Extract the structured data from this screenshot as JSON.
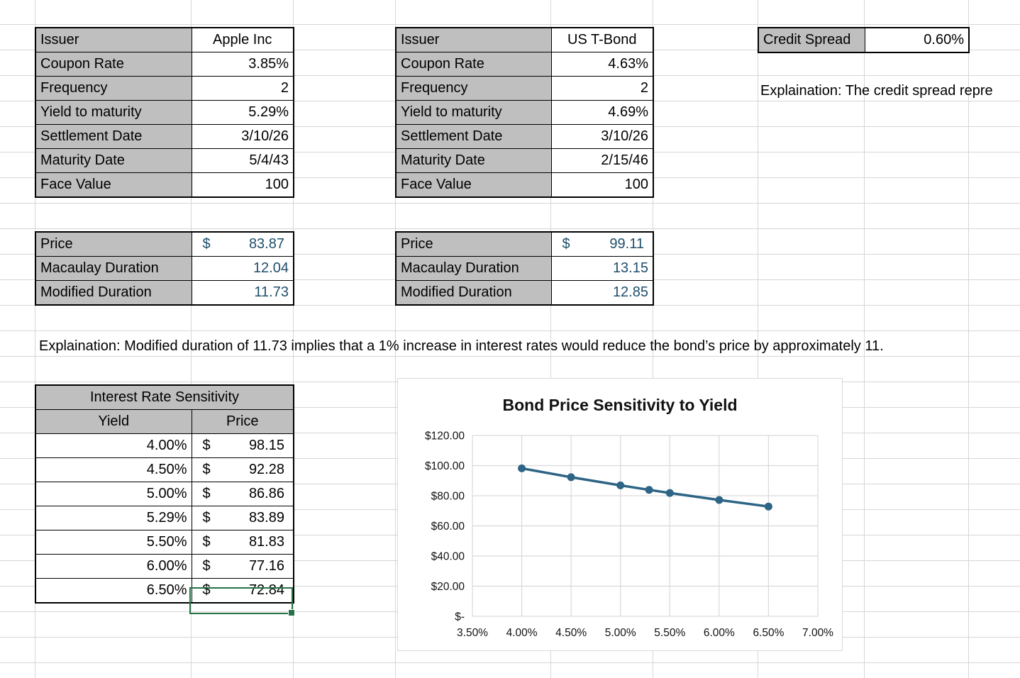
{
  "colors": {
    "value_blue": "#1F4E6B",
    "selection_green": "#287048",
    "header_gray": "#BFBFBF",
    "chart_line": "#2E6485",
    "gridline_gray": "#D6D6D6"
  },
  "tables": {
    "apple": {
      "rows": [
        {
          "label": "Issuer",
          "value": "Apple Inc"
        },
        {
          "label": "Coupon Rate",
          "value": "3.85%"
        },
        {
          "label": "Frequency",
          "value": "2"
        },
        {
          "label": "Yield to maturity",
          "value": "5.29%"
        },
        {
          "label": "Settlement Date",
          "value": "3/10/26"
        },
        {
          "label": "Maturity Date",
          "value": "5/4/43"
        },
        {
          "label": "Face Value",
          "value": "100"
        }
      ]
    },
    "tbond": {
      "rows": [
        {
          "label": "Issuer",
          "value": "US T-Bond"
        },
        {
          "label": "Coupon Rate",
          "value": "4.63%"
        },
        {
          "label": "Frequency",
          "value": "2"
        },
        {
          "label": "Yield to maturity",
          "value": "4.69%"
        },
        {
          "label": "Settlement Date",
          "value": "3/10/26"
        },
        {
          "label": "Maturity Date",
          "value": "2/15/46"
        },
        {
          "label": "Face Value",
          "value": "100"
        }
      ]
    },
    "credit": {
      "label": "Credit Spread",
      "value": "0.60%"
    },
    "apple_metrics": {
      "rows": [
        {
          "label": "Price",
          "currency": "$",
          "value": "83.87"
        },
        {
          "label": "Macaulay Duration",
          "value": "12.04"
        },
        {
          "label": "Modified Duration",
          "value": "11.73"
        }
      ]
    },
    "tbond_metrics": {
      "rows": [
        {
          "label": "Price",
          "currency": "$",
          "value": "99.11"
        },
        {
          "label": "Macaulay Duration",
          "value": "13.15"
        },
        {
          "label": "Modified Duration",
          "value": "12.85"
        }
      ]
    },
    "sensitivity": {
      "title": "Interest Rate Sensitivity",
      "headers": {
        "yield": "Yield",
        "price": "Price"
      },
      "rows": [
        {
          "yield": "4.00%",
          "currency": "$",
          "price": "98.15"
        },
        {
          "yield": "4.50%",
          "currency": "$",
          "price": "92.28"
        },
        {
          "yield": "5.00%",
          "currency": "$",
          "price": "86.86"
        },
        {
          "yield": "5.29%",
          "currency": "$",
          "price": "83.89"
        },
        {
          "yield": "5.50%",
          "currency": "$",
          "price": "81.83"
        },
        {
          "yield": "6.00%",
          "currency": "$",
          "price": "77.16"
        },
        {
          "yield": "6.50%",
          "currency": "$",
          "price": "72.84"
        }
      ]
    }
  },
  "explanations": {
    "duration": "Explaination: Modified duration of 11.73 implies that a 1% increase in interest rates would reduce the bond’s price by approximately 11.",
    "credit": "Explaination: The credit spread repre"
  },
  "chart_data": {
    "type": "line",
    "title": "Bond Price Sensitivity to Yield",
    "x": [
      4.0,
      4.5,
      5.0,
      5.29,
      5.5,
      6.0,
      6.5
    ],
    "y": [
      98.15,
      92.28,
      86.86,
      83.89,
      81.83,
      77.16,
      72.84
    ],
    "xlim": [
      3.5,
      7.0
    ],
    "ylim": [
      0,
      120
    ],
    "x_tick_labels": [
      "3.50%",
      "4.00%",
      "4.50%",
      "5.00%",
      "5.50%",
      "6.00%",
      "6.50%",
      "7.00%"
    ],
    "y_tick_labels": [
      "$120.00",
      "$100.00",
      "$80.00",
      "$60.00",
      "$40.00",
      "$20.00",
      "$-"
    ],
    "xlabel": "",
    "ylabel": "",
    "grid": true,
    "legend": false,
    "line_color": "#2E6485",
    "marker": "circle"
  }
}
